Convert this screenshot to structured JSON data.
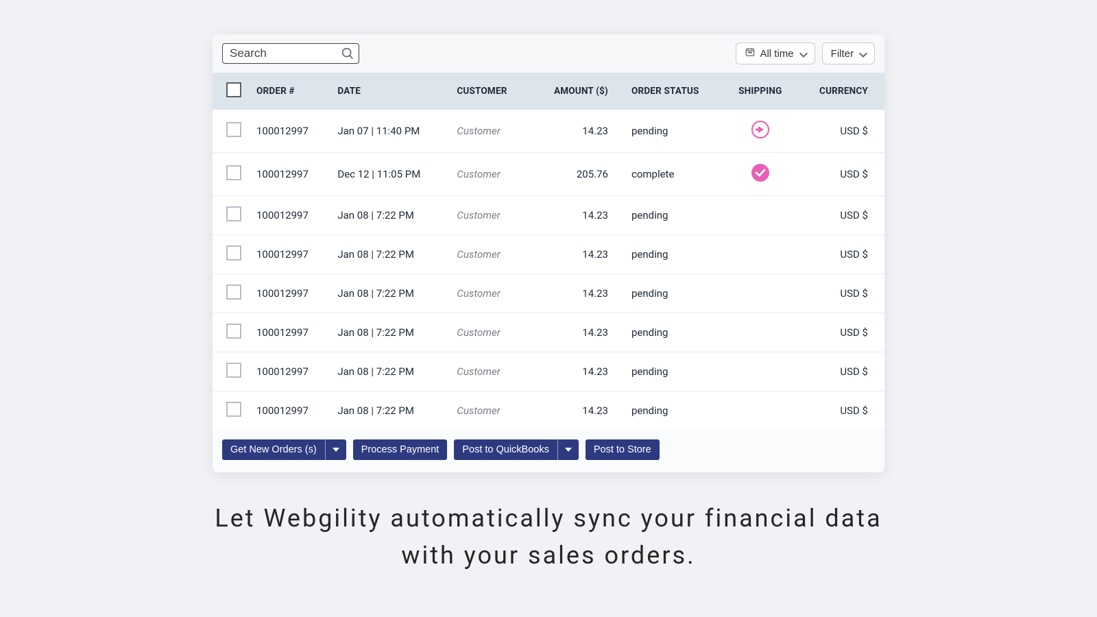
{
  "toolbar": {
    "search_placeholder": "Search",
    "time_filter_label": "All time",
    "filter_label": "Filter"
  },
  "columns": {
    "order": "ORDER #",
    "date": "DATE",
    "customer": "CUSTOMER",
    "amount": "AMOUNT ($)",
    "status": "ORDER STATUS",
    "shipping": "SHIPPING",
    "currency": "CURRENCY"
  },
  "rows": [
    {
      "order": "100012997",
      "date": "Jan 07 | 11:40 PM",
      "customer": "Customer",
      "amount": "14.23",
      "status": "pending",
      "shipping": "arrow",
      "currency": "USD $"
    },
    {
      "order": "100012997",
      "date": "Dec 12 | 11:05 PM",
      "customer": "Customer",
      "amount": "205.76",
      "status": "complete",
      "shipping": "check",
      "currency": "USD $"
    },
    {
      "order": "100012997",
      "date": "Jan 08 | 7:22 PM",
      "customer": "Customer",
      "amount": "14.23",
      "status": "pending",
      "shipping": "none",
      "currency": "USD $"
    },
    {
      "order": "100012997",
      "date": "Jan 08 | 7:22 PM",
      "customer": "Customer",
      "amount": "14.23",
      "status": "pending",
      "shipping": "none",
      "currency": "USD $"
    },
    {
      "order": "100012997",
      "date": "Jan 08 | 7:22 PM",
      "customer": "Customer",
      "amount": "14.23",
      "status": "pending",
      "shipping": "none",
      "currency": "USD $"
    },
    {
      "order": "100012997",
      "date": "Jan 08 | 7:22 PM",
      "customer": "Customer",
      "amount": "14.23",
      "status": "pending",
      "shipping": "none",
      "currency": "USD $"
    },
    {
      "order": "100012997",
      "date": "Jan 08 | 7:22 PM",
      "customer": "Customer",
      "amount": "14.23",
      "status": "pending",
      "shipping": "none",
      "currency": "USD $"
    },
    {
      "order": "100012997",
      "date": "Jan 08 | 7:22 PM",
      "customer": "Customer",
      "amount": "14.23",
      "status": "pending",
      "shipping": "none",
      "currency": "USD $"
    }
  ],
  "actions": {
    "get_new_orders": "Get New Orders (s)",
    "process_payment": "Process Payment",
    "post_quickbooks": "Post to QuickBooks",
    "post_store": "Post to Store"
  },
  "tagline": "Let Webgility automatically sync your financial data with your sales orders.",
  "colors": {
    "accent_pink": "#e85fb6",
    "button_navy": "#2e3a80",
    "header_bg": "#dde5ec"
  }
}
